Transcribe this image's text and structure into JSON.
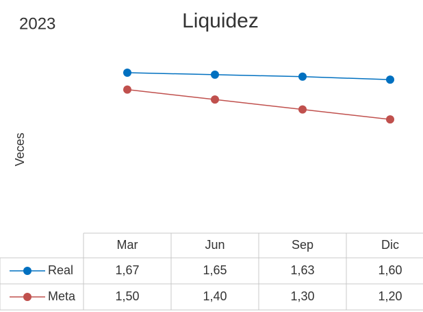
{
  "chart_data": {
    "type": "line",
    "year": "2023",
    "title": "Liquidez",
    "y_label": "Veces",
    "categories": [
      "Mar",
      "Jun",
      "Sep",
      "Dic"
    ],
    "series": [
      {
        "name": "Real",
        "color": "#0070c0",
        "values": [
          1.67,
          1.65,
          1.63,
          1.6
        ],
        "value_labels": [
          "1,67",
          "1,65",
          "1,63",
          "1,60"
        ]
      },
      {
        "name": "Meta",
        "color": "#c0504d",
        "values": [
          1.5,
          1.4,
          1.3,
          1.2
        ],
        "value_labels": [
          "1,50",
          "1,40",
          "1,30",
          "1,20"
        ]
      }
    ]
  }
}
